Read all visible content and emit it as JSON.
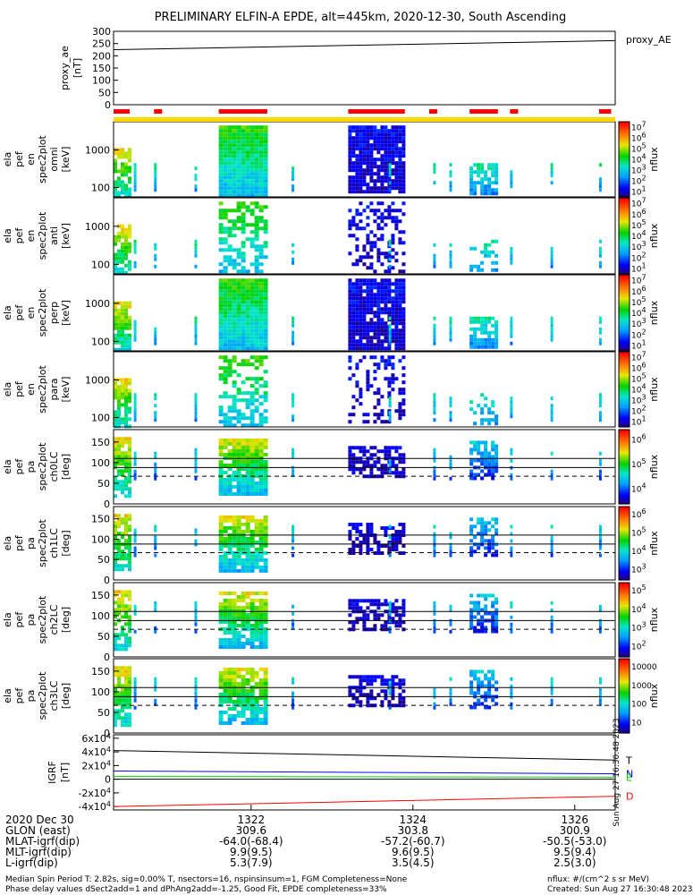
{
  "title": "PRELIMINARY ELFIN-A EPDE, alt=445km, 2020-12-30, South Ascending",
  "colors": {
    "red": "#ff0000",
    "yellow": "#ffd700",
    "green": "#00cc00",
    "blue": "#0000ff"
  },
  "chart_data": [
    {
      "type": "line",
      "panel": "proxy_ae",
      "ylabel": [
        "proxy_ae",
        "[nT]"
      ],
      "legend": "proxy_AE",
      "yticks": [
        "300",
        "250",
        "200",
        "150",
        "100",
        "50",
        "0"
      ],
      "ylim": [
        0,
        300
      ],
      "series": [
        {
          "x_minutes": [
            1320.3,
            1326.5
          ],
          "values": [
            225,
            262
          ]
        }
      ]
    },
    {
      "type": "bar",
      "panel": "status bar",
      "red_segments_minutes": [
        [
          1320.3,
          1320.5
        ],
        [
          1320.8,
          1320.9
        ],
        [
          1321.6,
          1322.2
        ],
        [
          1323.2,
          1323.9
        ],
        [
          1324.2,
          1324.3
        ],
        [
          1324.7,
          1325.05
        ],
        [
          1325.2,
          1325.3
        ],
        [
          1326.3,
          1326.45
        ]
      ],
      "yellow_span_minutes": [
        1320.3,
        1326.5
      ]
    },
    {
      "type": "heatmap",
      "panel": "omni",
      "ylabel": [
        "ela",
        "pef",
        "en",
        "spec2plot",
        "omni",
        "[keV]"
      ],
      "yticks": [
        "1000",
        "100"
      ],
      "cbar_label": "nflux",
      "cbar_ticks": [
        "10^7",
        "10^6",
        "10^5",
        "10^4",
        "10^3",
        "10^2",
        "10^1"
      ]
    },
    {
      "type": "heatmap",
      "panel": "anti",
      "ylabel": [
        "ela",
        "pef",
        "en",
        "spec2plot",
        "anti",
        "[keV]"
      ],
      "yticks": [
        "1000",
        "100"
      ],
      "cbar_label": "nflux",
      "cbar_ticks": [
        "10^7",
        "10^6",
        "10^5",
        "10^4",
        "10^3",
        "10^2",
        "10^1"
      ]
    },
    {
      "type": "heatmap",
      "panel": "perp",
      "ylabel": [
        "ela",
        "pef",
        "en",
        "spec2plot",
        "perp",
        "[keV]"
      ],
      "yticks": [
        "1000",
        "100"
      ],
      "cbar_label": "nflux",
      "cbar_ticks": [
        "10^7",
        "10^6",
        "10^5",
        "10^4",
        "10^3",
        "10^2",
        "10^1"
      ]
    },
    {
      "type": "heatmap",
      "panel": "para",
      "ylabel": [
        "ela",
        "pef",
        "en",
        "spec2plot",
        "para",
        "[keV]"
      ],
      "yticks": [
        "1000",
        "100"
      ],
      "cbar_label": "nflux",
      "cbar_ticks": [
        "10^7",
        "10^6",
        "10^5",
        "10^4",
        "10^3",
        "10^2",
        "10^1"
      ]
    },
    {
      "type": "heatmap",
      "panel": "ch0LC",
      "ylabel": [
        "ela",
        "pef",
        "pa",
        "spec2plot",
        "ch0LC",
        "[deg]"
      ],
      "yticks": [
        "150",
        "100",
        "50",
        "0"
      ],
      "ylim": [
        0,
        180
      ],
      "cbar_label": "nflux",
      "cbar_ticks": [
        "10^6",
        "10^5",
        "10^4"
      ]
    },
    {
      "type": "heatmap",
      "panel": "ch1LC",
      "ylabel": [
        "ela",
        "pef",
        "pa",
        "spec2plot",
        "ch1LC",
        "[deg]"
      ],
      "yticks": [
        "150",
        "100",
        "50",
        "0"
      ],
      "ylim": [
        0,
        180
      ],
      "cbar_label": "nflux",
      "cbar_ticks": [
        "10^6",
        "10^5",
        "10^4",
        "10^3"
      ]
    },
    {
      "type": "heatmap",
      "panel": "ch2LC",
      "ylabel": [
        "ela",
        "pef",
        "pa",
        "spec2plot",
        "ch2LC",
        "[deg]"
      ],
      "yticks": [
        "150",
        "100",
        "50",
        "0"
      ],
      "ylim": [
        0,
        180
      ],
      "cbar_label": "nflux",
      "cbar_ticks": [
        "10^5",
        "10^4",
        "10^3",
        "10^2"
      ]
    },
    {
      "type": "heatmap",
      "panel": "ch3LC",
      "ylabel": [
        "ela",
        "pef",
        "pa",
        "spec2plot",
        "ch3LC",
        "[deg]"
      ],
      "yticks": [
        "150",
        "100",
        "50",
        "0"
      ],
      "ylim": [
        0,
        180
      ],
      "cbar_label": "nflux",
      "cbar_ticks": [
        "10000",
        "1000",
        "100",
        "10"
      ]
    },
    {
      "type": "line",
      "panel": "IGRF",
      "ylabel": [
        "IGRF",
        "[nT]"
      ],
      "yticks": [
        "6x10^4",
        "4x10^4",
        "2x10^4",
        "0",
        "-2x10^4",
        "-4x10^4"
      ],
      "ylim": [
        -45000,
        65000
      ],
      "series": [
        {
          "name": "T",
          "color": "#000000",
          "x_minutes": [
            1320.3,
            1326.5
          ],
          "values": [
            42000,
            28000
          ]
        },
        {
          "name": "N",
          "color": "#0000ff",
          "x_minutes": [
            1320.3,
            1326.5
          ],
          "values": [
            12000,
            8000
          ]
        },
        {
          "name": "E",
          "color": "#00cc00",
          "x_minutes": [
            1320.3,
            1326.5
          ],
          "values": [
            4000,
            3000
          ]
        },
        {
          "name": "D",
          "color": "#ff0000",
          "x_minutes": [
            1320.3,
            1326.5
          ],
          "values": [
            -40000,
            -25000
          ]
        }
      ]
    }
  ],
  "time_axis": {
    "date": "2020 Dec 30",
    "labels": [
      "1322",
      "1324",
      "1326"
    ],
    "label_minutes": [
      1322,
      1324,
      1326
    ],
    "xlim_minutes": [
      1320.3,
      1326.5
    ]
  },
  "ephemeris": [
    {
      "name": "GLON (east)",
      "values": [
        "309.6",
        "303.8",
        "300.9"
      ]
    },
    {
      "name": "MLAT-igrf(dip)",
      "values": [
        "-64.0(-68.4)",
        "-57.2(-60.7)",
        "-50.5(-53.0)"
      ]
    },
    {
      "name": "MLT-igrf(dip)",
      "values": [
        "9.9(9.5)",
        "9.6(9.5)",
        "9.5(9.4)"
      ]
    },
    {
      "name": "L-igrf(dip)",
      "values": [
        "5.3(7.9)",
        "3.5(4.5)",
        "2.5(3.0)"
      ]
    }
  ],
  "footer": {
    "line1": "Median Spin Period T: 2.82s, sig=0.00% T, nsectors=16, nspinsinsum=1, FGM Completeness=None",
    "line2": "Phase delay values dSect2add=1 and dPhAng2add=-1.25, Good Fit, EPDE completeness=33%",
    "units": "nflux: #/(cm^2 s sr MeV)",
    "created": "Created: Sun Aug 27 16:30:48 2023",
    "side_stamp": "Sun Aug 27 16:30:48 2023"
  }
}
